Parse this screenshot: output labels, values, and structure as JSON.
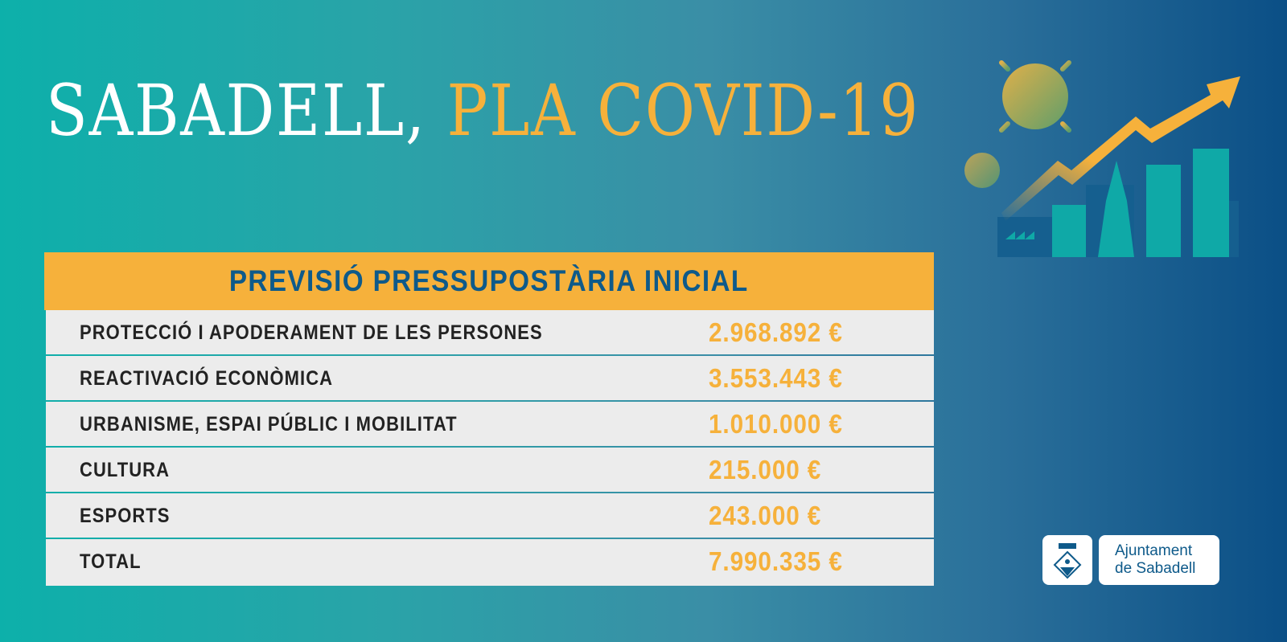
{
  "title": {
    "part1": "SABADELL,",
    "part2": "PLA COVID-19"
  },
  "table": {
    "header": "PREVISIÓ PRESSUPOSTÀRIA INICIAL",
    "rows": [
      {
        "label": "PROTECCIÓ I APODERAMENT DE LES PERSONES",
        "amount": "2.968.892 €"
      },
      {
        "label": "REACTIVACIÓ ECONÒMICA",
        "amount": "3.553.443 €"
      },
      {
        "label": "URBANISME, ESPAI PÚBLIC I MOBILITAT",
        "amount": "1.010.000 €"
      },
      {
        "label": "CULTURA",
        "amount": "215.000 €"
      },
      {
        "label": "ESPORTS",
        "amount": "243.000 €"
      },
      {
        "label": "TOTAL",
        "amount": "7.990.335 €"
      }
    ]
  },
  "logo": {
    "line1": "Ajuntament",
    "line2": "de Sabadell"
  },
  "colors": {
    "accent": "#f6b13b",
    "header_text": "#0e5a8a",
    "row_bg": "#ececec",
    "teal": "#0db0aa",
    "navy": "#0b4f86"
  },
  "icons": [
    "virus-icon",
    "rising-arrow-icon",
    "city-skyline-icon",
    "coat-of-arms-icon"
  ]
}
